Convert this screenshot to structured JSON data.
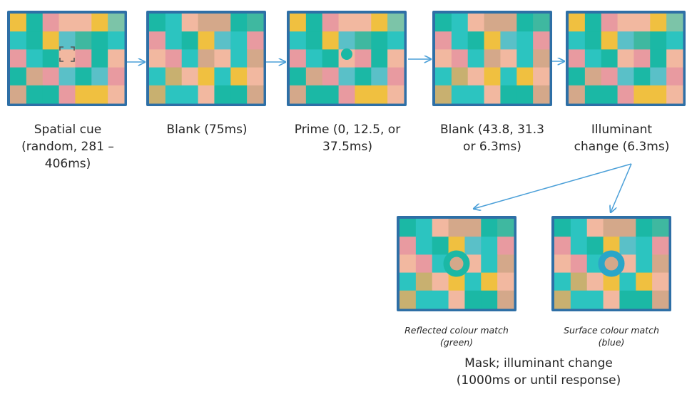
{
  "colors": {
    "frame": "#2e6fa6",
    "arrow": "#4a9fd8",
    "patch_palette": [
      "#f0c040",
      "#1bb8a5",
      "#2cc4c0",
      "#e89aa0",
      "#f2b8a0",
      "#d4a88a",
      "#c8b070",
      "#7cc4a8",
      "#3fb8a0",
      "#5ac0c8"
    ],
    "cue": "#555555",
    "prime": "#1bb8a5",
    "ring_green": "#1bb8a5",
    "ring_blue": "#2aa6c8"
  },
  "stages": [
    {
      "label": "Spatial cue\n(random, 281 –\n406ms)",
      "marker": "cue"
    },
    {
      "label": "Blank (75ms)",
      "marker": "none"
    },
    {
      "label": "Prime (0, 12.5, or\n37.5ms)",
      "marker": "dot"
    },
    {
      "label": "Blank (43.8, 31.3\nor 6.3ms)",
      "marker": "none"
    },
    {
      "label": "Illuminant\nchange (6.3ms)",
      "marker": "none"
    }
  ],
  "outcomes": [
    {
      "label": "Reflected colour match\n(green)",
      "marker": "ring-green"
    },
    {
      "label": "Surface colour match\n(blue)",
      "marker": "ring-blue"
    }
  ],
  "mask_label": "Mask; illuminant change\n(1000ms or until response)"
}
